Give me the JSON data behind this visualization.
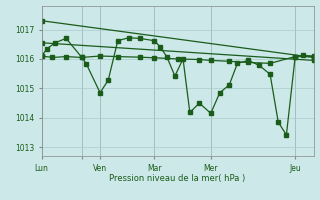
{
  "background_color": "#cce8e8",
  "grid_color": "#aacccc",
  "line_color": "#1a5c1a",
  "xlabel": "Pression niveau de la mer( hPa )",
  "ylim": [
    1012.7,
    1017.8
  ],
  "yticks": [
    1013,
    1014,
    1015,
    1016,
    1017
  ],
  "xlim": [
    0,
    1.0
  ],
  "x_tick_positions": [
    0.0,
    0.148,
    0.215,
    0.415,
    0.622,
    0.932
  ],
  "x_tick_labels": [
    "Lun",
    "",
    "Ven",
    "Mar",
    "Mer",
    "Jeu"
  ],
  "x_vline_positions": [
    0.0,
    0.148,
    0.215,
    0.415,
    0.622,
    0.932
  ],
  "trend1_x": [
    0.0,
    1.0
  ],
  "trend1_y": [
    1016.55,
    1015.95
  ],
  "trend2_x": [
    0.0,
    1.0
  ],
  "trend2_y": [
    1017.3,
    1016.05
  ],
  "main_x": [
    0.0,
    0.02,
    0.05,
    0.09,
    0.148,
    0.165,
    0.215,
    0.245,
    0.28,
    0.32,
    0.36,
    0.415,
    0.435,
    0.46,
    0.49,
    0.52,
    0.545,
    0.58,
    0.622,
    0.655,
    0.69,
    0.72,
    0.76,
    0.8,
    0.84,
    0.87,
    0.9,
    0.932,
    0.96,
    1.0
  ],
  "main_y": [
    1016.1,
    1016.35,
    1016.55,
    1016.7,
    1016.05,
    1015.82,
    1014.85,
    1015.28,
    1016.62,
    1016.72,
    1016.7,
    1016.62,
    1016.42,
    1016.08,
    1015.42,
    1016.0,
    1014.18,
    1014.5,
    1014.15,
    1014.85,
    1015.12,
    1015.85,
    1015.95,
    1015.78,
    1015.48,
    1013.85,
    1013.42,
    1016.05,
    1016.12,
    1016.1
  ],
  "flat_x": [
    0.0,
    0.04,
    0.09,
    0.148,
    0.215,
    0.28,
    0.36,
    0.415,
    0.5,
    0.58,
    0.622,
    0.69,
    0.76,
    0.84,
    0.932,
    1.0
  ],
  "flat_y": [
    1016.1,
    1016.05,
    1016.08,
    1016.05,
    1016.1,
    1016.08,
    1016.06,
    1016.04,
    1016.0,
    1015.98,
    1015.95,
    1015.92,
    1015.88,
    1015.85,
    1016.08,
    1016.08
  ]
}
